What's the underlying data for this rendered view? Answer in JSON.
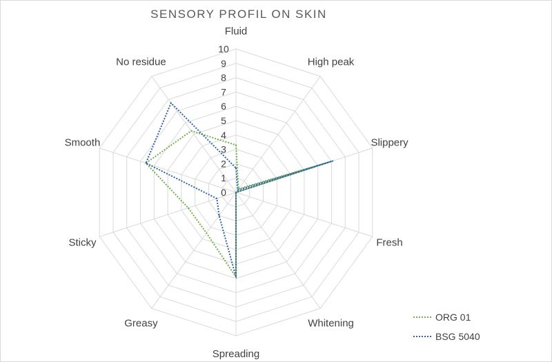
{
  "chart_data": {
    "type": "radar",
    "title": "SENSORY PROFIL ON SKIN",
    "categories": [
      "Fluid",
      "High peak",
      "Slippery",
      "Fresh",
      "Whitening",
      "Spreading",
      "Greasy",
      "Sticky",
      "Smooth",
      "No residue"
    ],
    "r_ticks": [
      "0",
      "1",
      "2",
      "3",
      "4",
      "5",
      "6",
      "7",
      "8",
      "9",
      "10"
    ],
    "rlim": [
      0,
      10
    ],
    "grid": true,
    "legend_position": "bottom-right",
    "series": [
      {
        "name": "ORG 01",
        "color": "#70ad47",
        "values": [
          3.3,
          0.3,
          7.0,
          0,
          0,
          5.9,
          3.5,
          3.5,
          6.6,
          5.3
        ]
      },
      {
        "name": "BSG 5040",
        "color": "#2e5fa8",
        "values": [
          1.7,
          0.2,
          7.1,
          0,
          0,
          5.9,
          2.0,
          1.4,
          6.6,
          7.7
        ]
      }
    ]
  }
}
